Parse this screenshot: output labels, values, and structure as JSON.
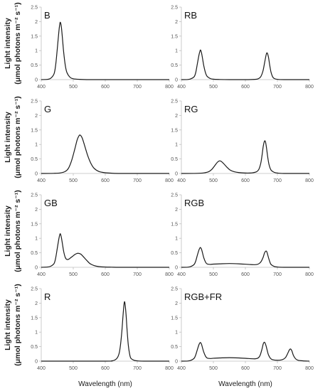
{
  "figure": {
    "ylabel_line1": "Light intensity",
    "ylabel_line2": "(μmol photons m⁻² s⁻¹)",
    "xlabel": "Wavelength (nm)"
  },
  "chart_data": [
    {
      "type": "line",
      "title": "B",
      "xlim": [
        400,
        800
      ],
      "ylim": [
        0,
        2.5
      ],
      "xticks": [
        400,
        500,
        600,
        700,
        800
      ],
      "yticks": [
        0,
        0.5,
        1,
        1.5,
        2,
        2.5
      ],
      "x": [
        400,
        420,
        430,
        440,
        445,
        450,
        455,
        458,
        460,
        463,
        466,
        470,
        475,
        480,
        490,
        500,
        520,
        550,
        600,
        800
      ],
      "values": [
        0,
        0.01,
        0.05,
        0.2,
        0.5,
        1.05,
        1.65,
        1.92,
        1.97,
        1.8,
        1.45,
        0.95,
        0.5,
        0.25,
        0.08,
        0.03,
        0.01,
        0,
        0,
        0
      ]
    },
    {
      "type": "line",
      "title": "RB",
      "xlim": [
        400,
        800
      ],
      "ylim": [
        0,
        2.5
      ],
      "xticks": [
        400,
        500,
        600,
        700,
        800
      ],
      "yticks": [
        0,
        0.5,
        1,
        1.5,
        2,
        2.5
      ],
      "x": [
        400,
        420,
        430,
        440,
        445,
        450,
        455,
        458,
        460,
        463,
        466,
        470,
        475,
        480,
        490,
        500,
        520,
        550,
        600,
        630,
        640,
        648,
        655,
        660,
        665,
        668,
        672,
        676,
        680,
        685,
        690,
        700,
        720,
        800
      ],
      "values": [
        0,
        0.005,
        0.03,
        0.1,
        0.25,
        0.55,
        0.85,
        0.98,
        1.02,
        0.92,
        0.74,
        0.48,
        0.25,
        0.12,
        0.04,
        0.015,
        0.005,
        0,
        0,
        0.01,
        0.03,
        0.1,
        0.3,
        0.58,
        0.86,
        0.92,
        0.78,
        0.5,
        0.26,
        0.1,
        0.04,
        0.01,
        0,
        0
      ]
    },
    {
      "type": "line",
      "title": "G",
      "xlim": [
        400,
        800
      ],
      "ylim": [
        0,
        2.5
      ],
      "xticks": [
        400,
        500,
        600,
        700,
        800
      ],
      "yticks": [
        0,
        0.5,
        1,
        1.5,
        2,
        2.5
      ],
      "x": [
        400,
        440,
        460,
        475,
        485,
        495,
        505,
        512,
        518,
        522,
        528,
        535,
        545,
        555,
        565,
        580,
        600,
        620,
        650,
        800
      ],
      "values": [
        0,
        0.005,
        0.02,
        0.07,
        0.18,
        0.45,
        0.85,
        1.15,
        1.3,
        1.32,
        1.22,
        0.98,
        0.62,
        0.35,
        0.18,
        0.07,
        0.025,
        0.01,
        0,
        0
      ]
    },
    {
      "type": "line",
      "title": "RG",
      "xlim": [
        400,
        800
      ],
      "ylim": [
        0,
        2.5
      ],
      "xticks": [
        400,
        500,
        600,
        700,
        800
      ],
      "yticks": [
        0,
        0.5,
        1,
        1.5,
        2,
        2.5
      ],
      "x": [
        400,
        450,
        470,
        485,
        495,
        505,
        512,
        518,
        524,
        532,
        542,
        552,
        565,
        580,
        600,
        620,
        635,
        642,
        648,
        652,
        656,
        660,
        663,
        666,
        670,
        674,
        680,
        690,
        700,
        720,
        800
      ],
      "values": [
        0,
        0.005,
        0.02,
        0.06,
        0.14,
        0.28,
        0.38,
        0.43,
        0.42,
        0.34,
        0.22,
        0.12,
        0.06,
        0.03,
        0.015,
        0.02,
        0.06,
        0.14,
        0.35,
        0.62,
        0.95,
        1.12,
        1.08,
        0.88,
        0.55,
        0.3,
        0.12,
        0.04,
        0.015,
        0,
        0
      ]
    },
    {
      "type": "line",
      "title": "GB",
      "xlim": [
        400,
        800
      ],
      "ylim": [
        0,
        2.5
      ],
      "xticks": [
        400,
        500,
        600,
        700,
        800
      ],
      "yticks": [
        0,
        0.5,
        1,
        1.5,
        2,
        2.5
      ],
      "x": [
        400,
        420,
        430,
        440,
        445,
        450,
        455,
        458,
        460,
        463,
        466,
        470,
        475,
        480,
        486,
        492,
        498,
        505,
        512,
        518,
        524,
        532,
        542,
        552,
        565,
        580,
        600,
        620,
        650,
        800
      ],
      "values": [
        0,
        0.01,
        0.04,
        0.13,
        0.32,
        0.65,
        0.98,
        1.13,
        1.15,
        1.02,
        0.82,
        0.55,
        0.34,
        0.27,
        0.28,
        0.33,
        0.38,
        0.44,
        0.48,
        0.48,
        0.45,
        0.36,
        0.24,
        0.13,
        0.06,
        0.025,
        0.01,
        0.005,
        0,
        0
      ]
    },
    {
      "type": "line",
      "title": "RGB",
      "xlim": [
        400,
        800
      ],
      "ylim": [
        0,
        2.5
      ],
      "xticks": [
        400,
        500,
        600,
        700,
        800
      ],
      "yticks": [
        0,
        0.5,
        1,
        1.5,
        2,
        2.5
      ],
      "x": [
        400,
        420,
        430,
        440,
        445,
        450,
        455,
        458,
        460,
        463,
        466,
        470,
        475,
        480,
        490,
        500,
        520,
        550,
        580,
        610,
        630,
        640,
        648,
        655,
        660,
        665,
        668,
        672,
        676,
        680,
        690,
        700,
        720,
        800
      ],
      "values": [
        0,
        0.005,
        0.03,
        0.1,
        0.22,
        0.42,
        0.6,
        0.67,
        0.68,
        0.62,
        0.5,
        0.33,
        0.19,
        0.12,
        0.1,
        0.11,
        0.12,
        0.13,
        0.12,
        0.1,
        0.09,
        0.11,
        0.18,
        0.33,
        0.5,
        0.56,
        0.5,
        0.34,
        0.2,
        0.1,
        0.03,
        0.01,
        0,
        0
      ]
    },
    {
      "type": "line",
      "title": "R",
      "xlim": [
        400,
        800
      ],
      "ylim": [
        0,
        2.5
      ],
      "xticks": [
        400,
        500,
        600,
        700,
        800
      ],
      "yticks": [
        0,
        0.5,
        1,
        1.5,
        2,
        2.5
      ],
      "x": [
        400,
        600,
        620,
        630,
        638,
        644,
        648,
        652,
        655,
        658,
        660,
        662,
        665,
        668,
        672,
        676,
        680,
        690,
        700,
        720,
        800
      ],
      "values": [
        0,
        0,
        0.01,
        0.04,
        0.12,
        0.3,
        0.6,
        1.05,
        1.5,
        1.9,
        2.05,
        1.95,
        1.6,
        1.1,
        0.55,
        0.25,
        0.1,
        0.03,
        0.01,
        0,
        0
      ]
    },
    {
      "type": "line",
      "title": "RGB+FR",
      "xlim": [
        400,
        800
      ],
      "ylim": [
        0,
        2.5
      ],
      "xticks": [
        400,
        500,
        600,
        700,
        800
      ],
      "yticks": [
        0,
        0.5,
        1,
        1.5,
        2,
        2.5
      ],
      "x": [
        400,
        420,
        430,
        440,
        445,
        450,
        455,
        458,
        460,
        463,
        466,
        470,
        475,
        480,
        490,
        500,
        520,
        550,
        580,
        610,
        630,
        640,
        646,
        652,
        656,
        660,
        664,
        668,
        672,
        678,
        685,
        700,
        715,
        725,
        732,
        737,
        741,
        745,
        750,
        757,
        765,
        780,
        800
      ],
      "values": [
        0,
        0.005,
        0.03,
        0.1,
        0.22,
        0.4,
        0.57,
        0.63,
        0.64,
        0.58,
        0.46,
        0.31,
        0.18,
        0.11,
        0.09,
        0.1,
        0.11,
        0.12,
        0.11,
        0.09,
        0.08,
        0.11,
        0.2,
        0.42,
        0.6,
        0.65,
        0.55,
        0.38,
        0.22,
        0.1,
        0.05,
        0.03,
        0.05,
        0.12,
        0.26,
        0.38,
        0.42,
        0.36,
        0.2,
        0.08,
        0.03,
        0.01,
        0
      ]
    }
  ]
}
